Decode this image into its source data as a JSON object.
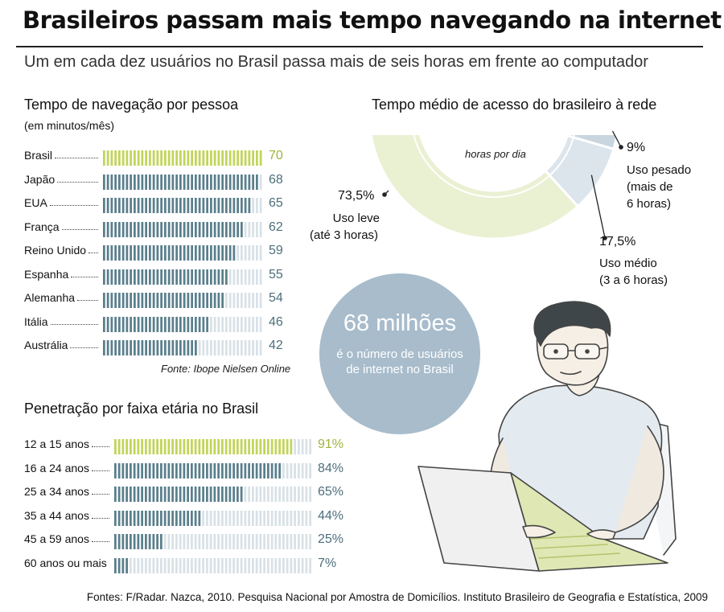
{
  "title": "Brasileiros passam mais tempo navegando na internet",
  "subtitle": "Um em cada dez usuários no Brasil passa mais de seis horas em frente ao computador",
  "footer": "Fontes: F/Radar. Nazca, 2010. Pesquisa Nacional por Amostra de Domicílios. Instituto Brasileiro de Geografia e Estatística, 2009",
  "colors": {
    "highlight": "#c2d45a",
    "bar": "#5a7f8c",
    "empty": "#d8e1e6",
    "donut_leve": "#eaf0d2",
    "donut_medio": "#dce5ec",
    "donut_pesado": "#c9d6df",
    "circle": "#a8bccb"
  },
  "callout": {
    "headline": "68 milhões",
    "line1": "é o número de usuários",
    "line2": "de internet no Brasil"
  },
  "illustration": {
    "icon": "person-at-laptop-illustration"
  },
  "chart_data": [
    {
      "type": "bar",
      "orientation": "horizontal",
      "title": "Tempo de navegação por pessoa",
      "subtitle": "(em minutos/mês)",
      "source": "Fonte: Ibope Nielsen Online",
      "categories": [
        "Brasil",
        "Japão",
        "EUA",
        "França",
        "Reino Unido",
        "Espanha",
        "Alemanha",
        "Itália",
        "Austrália"
      ],
      "values": [
        70,
        68,
        65,
        62,
        59,
        55,
        54,
        46,
        42
      ],
      "value_labels": [
        "70",
        "68",
        "65",
        "62",
        "59",
        "55",
        "54",
        "46",
        "42"
      ],
      "xlim": [
        0,
        70
      ],
      "highlight_index": 0
    },
    {
      "type": "pie",
      "title": "Tempo médio de acesso do brasileiro à rede",
      "center_label": "horas por dia",
      "slices": [
        {
          "value": 73.5,
          "value_label": "73,5%",
          "label_lines": [
            "Uso leve",
            "(até 3 horas)"
          ]
        },
        {
          "value": 17.5,
          "value_label": "17,5%",
          "label_lines": [
            "Uso médio",
            "(3 a 6 horas)"
          ]
        },
        {
          "value": 9,
          "value_label": "9%",
          "label_lines": [
            "Uso pesado",
            "(mais de",
            "6 horas)"
          ]
        }
      ]
    },
    {
      "type": "bar",
      "orientation": "horizontal",
      "title": "Penetração por faixa etária no Brasil",
      "categories": [
        "12 a 15 anos",
        "16 a 24 anos",
        "25 a 34 anos",
        "35 a 44 anos",
        "45 a 59 anos",
        "60 anos ou mais"
      ],
      "values": [
        91,
        84,
        65,
        44,
        25,
        7
      ],
      "value_labels": [
        "91%",
        "84%",
        "65%",
        "44%",
        "25%",
        "7%"
      ],
      "xlim": [
        0,
        100
      ],
      "highlight_index": 0
    }
  ]
}
